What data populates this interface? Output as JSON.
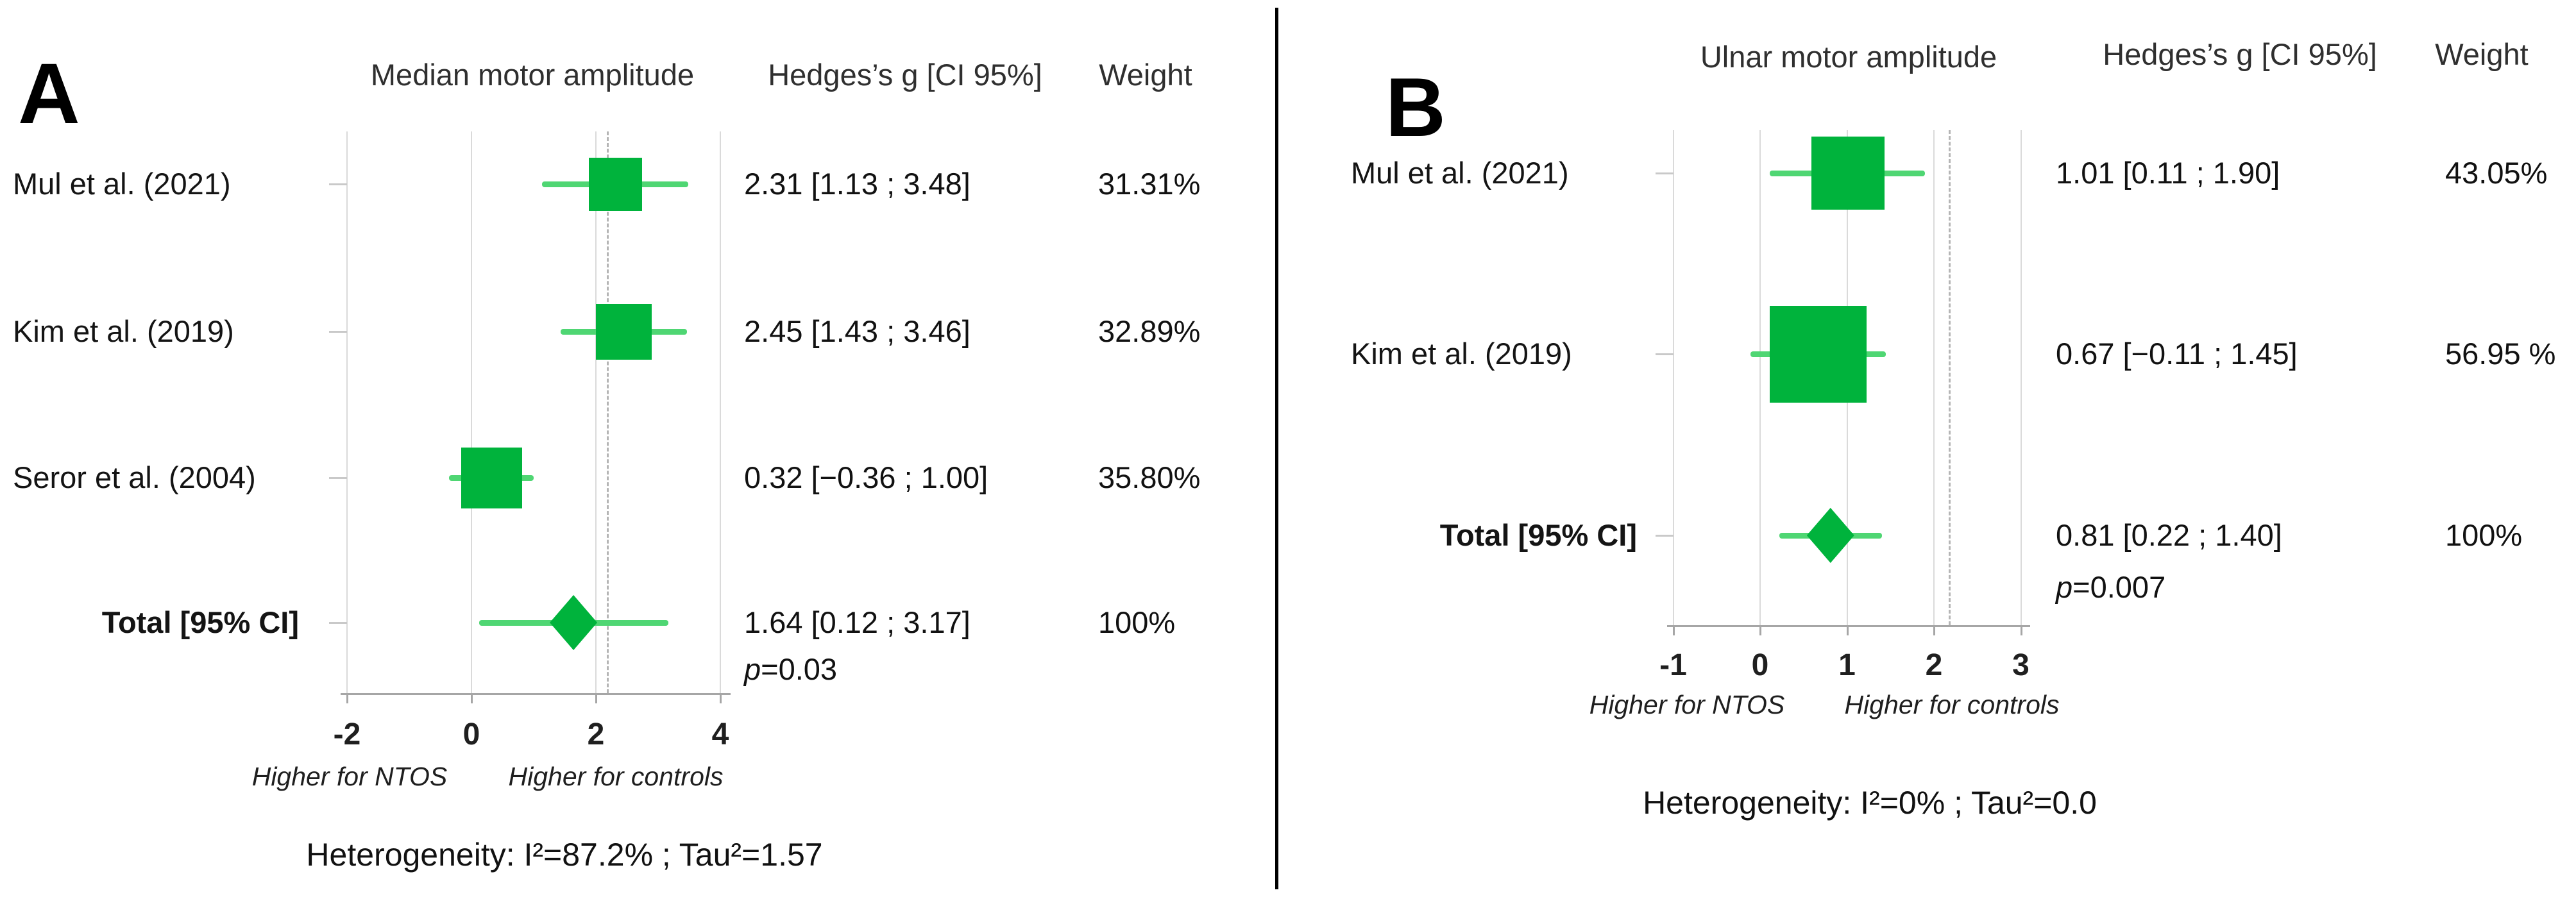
{
  "figure": {
    "background": "#ffffff",
    "divider_color": "#000000",
    "box_color": "#00b33c",
    "ci_color": "#4fd673",
    "axis_color": "#a6a6a6",
    "gridline_color": "#dadada",
    "dashed_line_color": "#b5b5b5"
  },
  "chart_data": [
    {
      "type": "forest",
      "panel_label": "A",
      "title": "Median motor amplitude",
      "effect_header": "Hedges’s g [CI 95%]",
      "weight_header": "Weight",
      "xlim": [
        -2,
        4
      ],
      "x_ticks": [
        -2,
        0,
        2,
        4
      ],
      "x_tick_labels": [
        "-2",
        "0",
        "2",
        "4"
      ],
      "dashed_ref_x": 2.19,
      "axis_note_left": "Higher for NTOS",
      "axis_note_right": "Higher for controls",
      "heterogeneity": "Heterogeneity: I²=87.2% ; Tau²=1.57",
      "studies": [
        {
          "label": "Mul et al. (2021)",
          "effect": 2.31,
          "ci": [
            1.13,
            3.48
          ],
          "effect_label": "2.31 [1.13 ; 3.48]",
          "weight_pct": 31.31,
          "weight_label": "31.31%"
        },
        {
          "label": "Kim et al. (2019)",
          "effect": 2.45,
          "ci": [
            1.43,
            3.46
          ],
          "effect_label": "2.45 [1.43 ; 3.46]",
          "weight_pct": 32.89,
          "weight_label": "32.89%"
        },
        {
          "label": "Seror et al. (2004)",
          "effect": 0.32,
          "ci": [
            -0.36,
            1.0
          ],
          "effect_label": "0.32 [−0.36 ; 1.00]",
          "weight_pct": 35.8,
          "weight_label": "35.80%"
        }
      ],
      "total": {
        "label": "Total [95% CI]",
        "effect": 1.64,
        "ci": [
          0.12,
          3.17
        ],
        "effect_label": "1.64 [0.12 ; 3.17]",
        "weight_label": "100%",
        "p_label": "p=0.03"
      }
    },
    {
      "type": "forest",
      "panel_label": "B",
      "title": "Ulnar motor amplitude",
      "effect_header": "Hedges’s g [CI 95%]",
      "weight_header": "Weight",
      "xlim": [
        -1,
        3
      ],
      "x_ticks": [
        -1,
        0,
        1,
        2,
        3
      ],
      "x_tick_labels": [
        "-1",
        "0",
        "1",
        "2",
        "3"
      ],
      "dashed_ref_x": 2.18,
      "axis_note_left": "Higher for NTOS",
      "axis_note_right": "Higher for controls",
      "heterogeneity": "Heterogeneity: I²=0% ; Tau²=0.0",
      "studies": [
        {
          "label": "Mul et al. (2021)",
          "effect": 1.01,
          "ci": [
            0.11,
            1.9
          ],
          "effect_label": "1.01 [0.11 ; 1.90]",
          "weight_pct": 43.05,
          "weight_label": "43.05%"
        },
        {
          "label": "Kim et al. (2019)",
          "effect": 0.67,
          "ci": [
            -0.11,
            1.45
          ],
          "effect_label": "0.67 [−0.11 ; 1.45]",
          "weight_pct": 56.95,
          "weight_label": "56.95 %"
        }
      ],
      "total": {
        "label": "Total [95% CI]",
        "effect": 0.81,
        "ci": [
          0.22,
          1.4
        ],
        "effect_label": "0.81 [0.22 ; 1.40]",
        "weight_label": "100%",
        "p_label": "p=0.007"
      }
    }
  ]
}
